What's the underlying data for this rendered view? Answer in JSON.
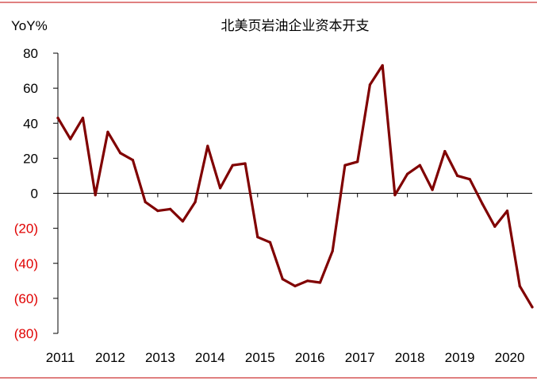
{
  "chart_data": {
    "type": "line",
    "title": "北美页岩油企业资本开支",
    "unit_label": "YoY%",
    "xlabel": "",
    "ylabel": "",
    "ylim": [
      -80,
      80
    ],
    "xlim": [
      2011,
      2020.5
    ],
    "y_ticks": [
      80,
      60,
      40,
      20,
      0,
      -20,
      -40,
      -60,
      -80
    ],
    "y_tick_labels": [
      "80",
      "60",
      "40",
      "20",
      "0",
      "(20)",
      "(40)",
      "(60)",
      "(80)"
    ],
    "x_tick_labels": [
      "2011",
      "2012",
      "2013",
      "2014",
      "2015",
      "2016",
      "2017",
      "2018",
      "2019",
      "2020"
    ],
    "grid": false,
    "legend": "none",
    "colors": {
      "line": "#800000",
      "frame_rule": "#c00000",
      "negative_tick": "#e00000",
      "positive_tick": "#000000",
      "axis": "#000000"
    },
    "series": [
      {
        "x": [
          2011.0,
          2011.25,
          2011.5,
          2011.75,
          2012.0,
          2012.25,
          2012.5,
          2012.75,
          2013.0,
          2013.25,
          2013.5,
          2013.75,
          2014.0,
          2014.25,
          2014.5,
          2014.75,
          2015.0,
          2015.25,
          2015.5,
          2015.75,
          2016.0,
          2016.25,
          2016.5,
          2016.75,
          2017.0,
          2017.25,
          2017.5,
          2017.75,
          2018.0,
          2018.25,
          2018.5,
          2018.75,
          2019.0,
          2019.25,
          2019.5,
          2019.75,
          2020.0,
          2020.25,
          2020.5
        ],
        "values": [
          43,
          31,
          43,
          -1,
          35,
          23,
          19,
          -5,
          -10,
          -9,
          -16,
          -5,
          27,
          3,
          16,
          17,
          -25,
          -28,
          -49,
          -53,
          -50,
          -51,
          -33,
          16,
          18,
          62,
          73,
          -1,
          11,
          16,
          2,
          24,
          10,
          8,
          -6,
          -19,
          -10,
          -53,
          -65
        ]
      }
    ]
  }
}
